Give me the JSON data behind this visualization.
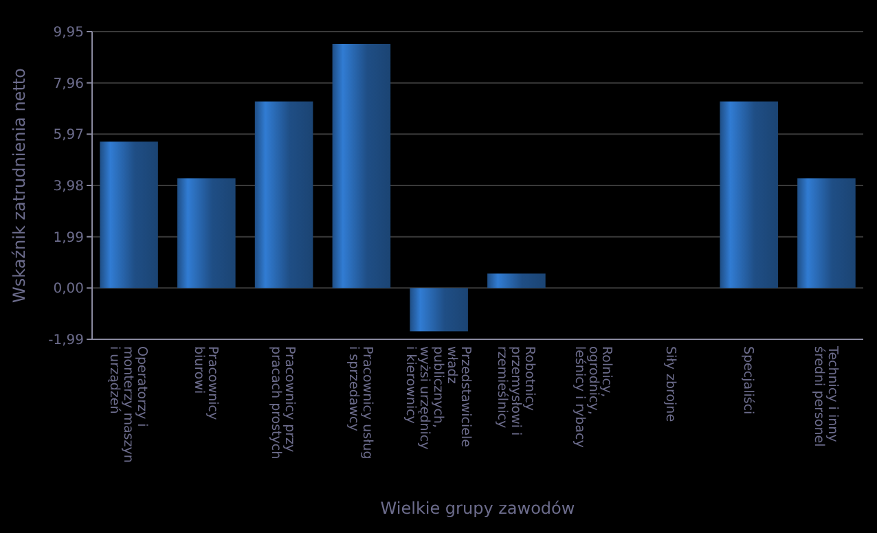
{
  "chart_data": {
    "type": "bar",
    "xlabel": "Wielkie grupy zawodów",
    "ylabel": "Wskaźnik zatrudnienia netto",
    "categories": [
      "Operatorzy i monterzy maszyn i urządzeń",
      "Pracownicy biurowi",
      "Pracownicy przy pracach prostych",
      "Pracownicy usług i sprzedawcy",
      "Przedstawiciele władz publicznych, wyżsi urzędnicy i kierownicy",
      "Robotnicy przemysłowi i rzemieślnicy",
      "Rolnicy, ogrodnicy, leśnicy i rybacy",
      "Siły zbrojne",
      "Specjaliści",
      "Technicy i inny średni personel"
    ],
    "values": [
      5.68,
      4.26,
      7.24,
      9.47,
      -1.68,
      0.56,
      0,
      0,
      7.24,
      4.26
    ],
    "color": "#1f4e85",
    "ylim": [
      -1.99,
      9.95
    ],
    "yticks": [
      {
        "value": -1.99,
        "label": "-1,99"
      },
      {
        "value": 0,
        "label": "0,00"
      },
      {
        "value": 1.99,
        "label": "1,99"
      },
      {
        "value": 3.98,
        "label": "3,98"
      },
      {
        "value": 5.97,
        "label": "5,97"
      },
      {
        "value": 7.96,
        "label": "7,96"
      },
      {
        "value": 9.95,
        "label": "9,95"
      }
    ],
    "grid": "y"
  }
}
